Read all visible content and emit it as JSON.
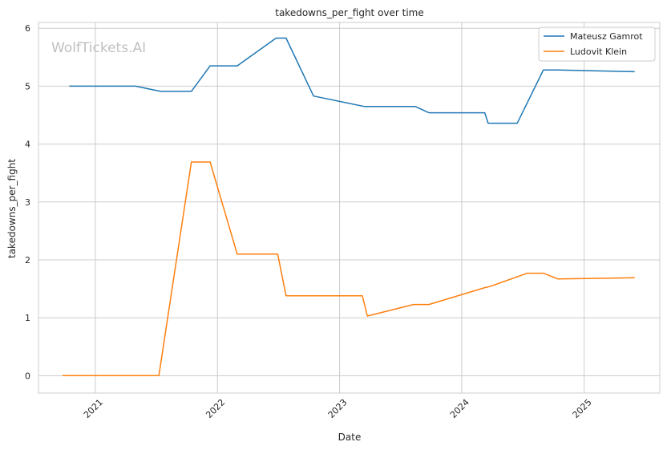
{
  "watermark": "WolfTickets.AI",
  "chart_data": {
    "type": "line",
    "title": "takedowns_per_fight over time",
    "xlabel": "Date",
    "ylabel": "takedowns_per_fight",
    "xlim": [
      "2020-07-15",
      "2025-08-15"
    ],
    "ylim": [
      -0.3,
      6.1
    ],
    "x_ticks": [
      "2021-01-01",
      "2022-01-01",
      "2023-01-01",
      "2024-01-01",
      "2025-01-01"
    ],
    "x_tick_labels": [
      "2021",
      "2022",
      "2023",
      "2024",
      "2025"
    ],
    "y_ticks": [
      0,
      1,
      2,
      3,
      4,
      5,
      6
    ],
    "grid": true,
    "legend_position": "top-right",
    "colors": {
      "Mateusz Gamrot": "#1f77b4",
      "Ludovit Klein": "#ff7f0e"
    },
    "series": [
      {
        "name": "Mateusz Gamrot",
        "color": "#1f77b4",
        "points": [
          [
            "2020-10-15",
            5.0
          ],
          [
            "2021-05-01",
            5.0
          ],
          [
            "2021-07-15",
            4.91
          ],
          [
            "2021-10-15",
            4.91
          ],
          [
            "2021-12-10",
            5.35
          ],
          [
            "2022-03-01",
            5.35
          ],
          [
            "2022-06-25",
            5.83
          ],
          [
            "2022-07-25",
            5.83
          ],
          [
            "2022-10-15",
            4.83
          ],
          [
            "2023-03-15",
            4.65
          ],
          [
            "2023-08-15",
            4.65
          ],
          [
            "2023-09-25",
            4.54
          ],
          [
            "2024-03-10",
            4.54
          ],
          [
            "2024-03-20",
            4.36
          ],
          [
            "2024-06-15",
            4.36
          ],
          [
            "2024-09-01",
            5.28
          ],
          [
            "2024-10-15",
            5.28
          ],
          [
            "2025-06-01",
            5.25
          ]
        ]
      },
      {
        "name": "Ludovit Klein",
        "color": "#ff7f0e",
        "points": [
          [
            "2020-09-25",
            0.0
          ],
          [
            "2021-07-10",
            0.0
          ],
          [
            "2021-10-15",
            3.69
          ],
          [
            "2021-12-10",
            3.69
          ],
          [
            "2022-03-01",
            2.1
          ],
          [
            "2022-06-30",
            2.1
          ],
          [
            "2022-07-25",
            1.38
          ],
          [
            "2023-03-10",
            1.38
          ],
          [
            "2023-03-25",
            1.03
          ],
          [
            "2023-08-10",
            1.23
          ],
          [
            "2023-09-25",
            1.23
          ],
          [
            "2024-03-10",
            1.52
          ],
          [
            "2024-03-25",
            1.54
          ],
          [
            "2024-07-15",
            1.77
          ],
          [
            "2024-09-01",
            1.77
          ],
          [
            "2024-10-15",
            1.67
          ],
          [
            "2025-06-01",
            1.69
          ]
        ]
      }
    ]
  }
}
